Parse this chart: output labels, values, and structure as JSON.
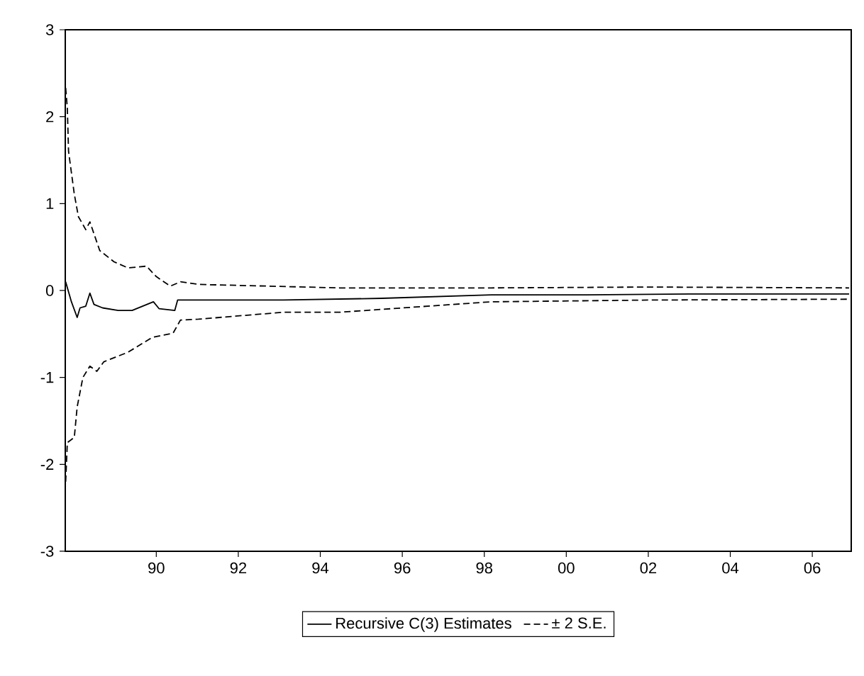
{
  "chart_data": {
    "type": "line",
    "legend": "bottom",
    "xlim": [
      1987.78,
      2006.95
    ],
    "ylim": [
      -3,
      3
    ],
    "xticks": [
      {
        "value": 1990,
        "label": "90"
      },
      {
        "value": 1992,
        "label": "92"
      },
      {
        "value": 1994,
        "label": "94"
      },
      {
        "value": 1996,
        "label": "96"
      },
      {
        "value": 1998,
        "label": "98"
      },
      {
        "value": 2000,
        "label": "00"
      },
      {
        "value": 2002,
        "label": "02"
      },
      {
        "value": 2004,
        "label": "04"
      },
      {
        "value": 2006,
        "label": "06"
      }
    ],
    "yticks": [
      -3,
      -2,
      -1,
      0,
      1,
      2,
      3
    ],
    "series": [
      {
        "name": "Recursive C(3) Estimates",
        "color": "#000000",
        "line_style": "solid",
        "x": [
          1987.79,
          1987.93,
          1988.07,
          1988.14,
          1988.28,
          1988.38,
          1988.48,
          1988.69,
          1989.07,
          1989.41,
          1989.93,
          1990.07,
          1990.45,
          1990.52,
          1991.03,
          1993.1,
          1995.5,
          1998.17,
          2000.5,
          2003,
          2006.9
        ],
        "values": [
          0.1,
          -0.13,
          -0.31,
          -0.2,
          -0.18,
          -0.03,
          -0.16,
          -0.2,
          -0.23,
          -0.23,
          -0.13,
          -0.21,
          -0.23,
          -0.11,
          -0.11,
          -0.11,
          -0.09,
          -0.05,
          -0.05,
          -0.04,
          -0.04
        ]
      },
      {
        "name": "± 2 S.E.",
        "color": "#000000",
        "line_style": "dashed",
        "x": [
          1987.79,
          1987.83,
          1987.86,
          1988.0,
          1988.1,
          1988.28,
          1988.38,
          1988.62,
          1988.97,
          1989.31,
          1989.76,
          1990,
          1990.34,
          1990.59,
          1991.03,
          1994.48,
          1998.17,
          2002,
          2006.9
        ],
        "values": [
          2.33,
          2.1,
          1.6,
          1.11,
          0.85,
          0.7,
          0.79,
          0.46,
          0.33,
          0.26,
          0.28,
          0.16,
          0.05,
          0.1,
          0.07,
          0.03,
          0.03,
          0.04,
          0.03
        ]
      },
      {
        "color": "#000000",
        "line_style": "dashed",
        "x": [
          1987.79,
          1987.83,
          1988.0,
          1988.07,
          1988.21,
          1988.38,
          1988.55,
          1988.72,
          1989.31,
          1989.9,
          1990.41,
          1990.59,
          1991.03,
          1993.1,
          1994.48,
          1998.17,
          2002,
          2006.9
        ],
        "values": [
          -2.2,
          -1.75,
          -1.69,
          -1.34,
          -1.0,
          -0.87,
          -0.93,
          -0.82,
          -0.71,
          -0.54,
          -0.49,
          -0.34,
          -0.33,
          -0.25,
          -0.25,
          -0.13,
          -0.11,
          -0.1
        ]
      }
    ]
  }
}
